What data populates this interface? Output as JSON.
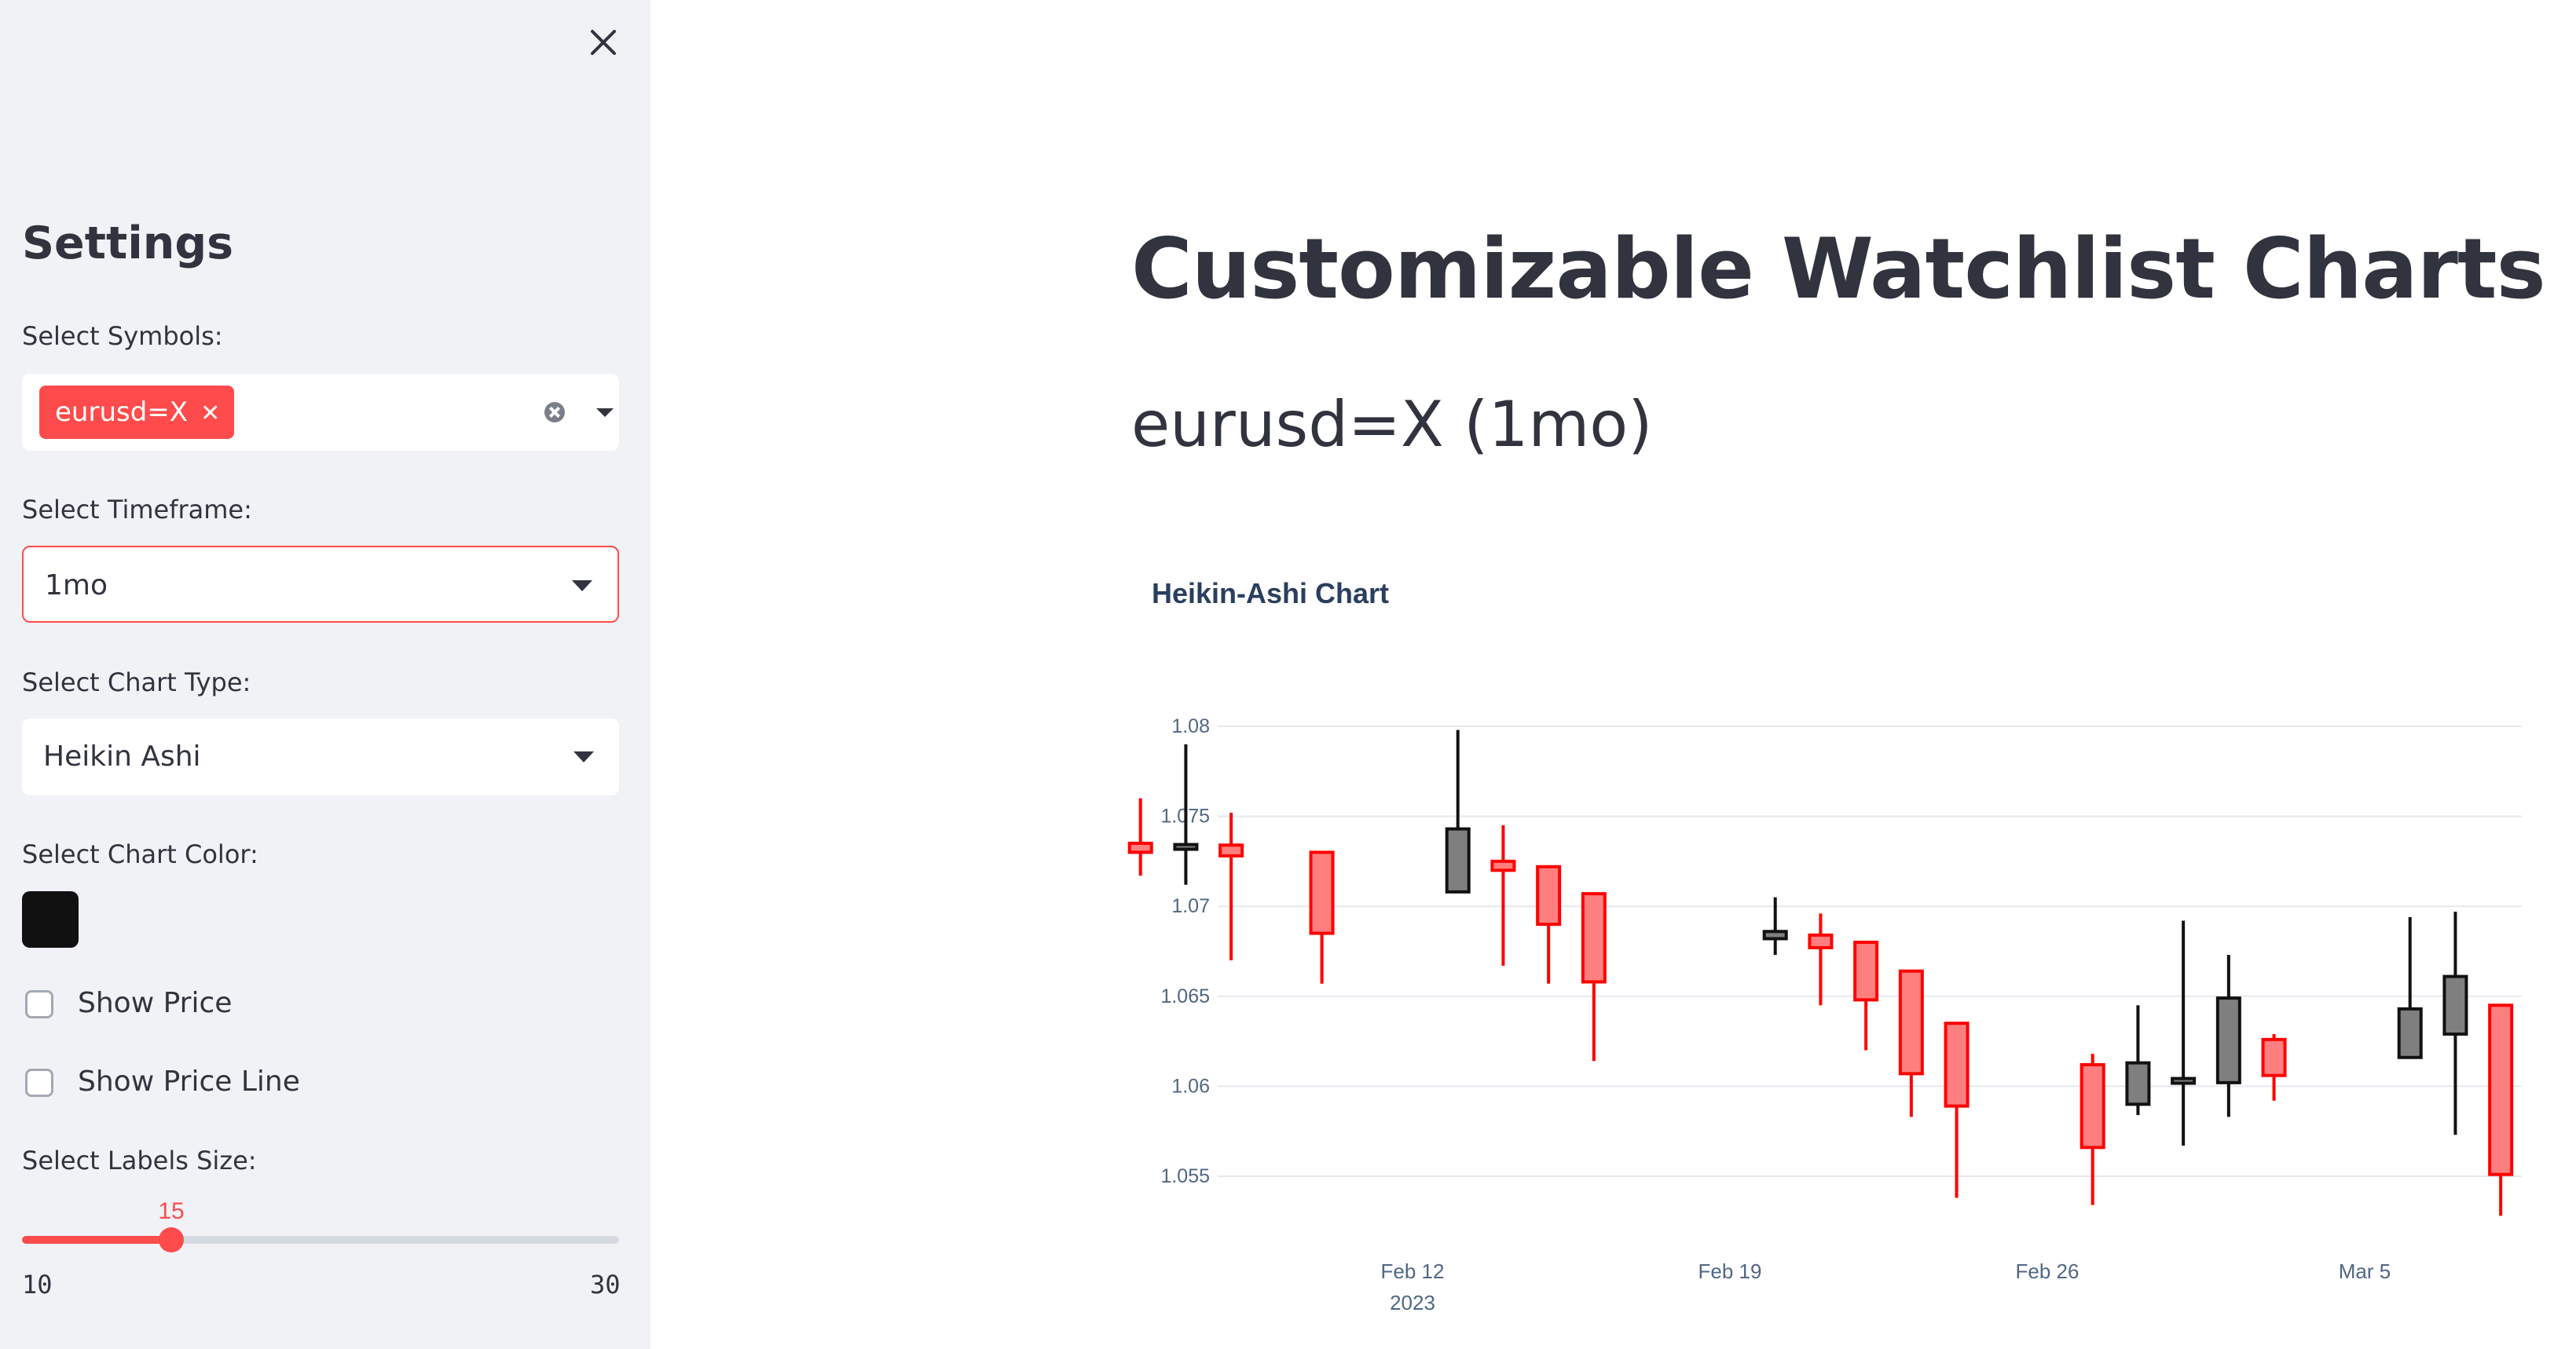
{
  "sidebar": {
    "title": "Settings",
    "symbols": {
      "label": "Select Symbols:",
      "selected": [
        "eurusd=X"
      ]
    },
    "timeframe": {
      "label": "Select Timeframe:",
      "value": "1mo"
    },
    "chart_type": {
      "label": "Select Chart Type:",
      "value": "Heikin Ashi"
    },
    "chart_color": {
      "label": "Select Chart Color:",
      "value": "#111111"
    },
    "show_price": {
      "label": "Show Price",
      "checked": false
    },
    "show_price_line": {
      "label": "Show Price Line",
      "checked": false
    },
    "labels_size": {
      "label": "Select Labels Size:",
      "value": 15,
      "min": 10,
      "max": 30,
      "min_label": "10",
      "max_label": "30",
      "value_label": "15"
    }
  },
  "main": {
    "title": "Customizable Watchlist Charts",
    "chart_heading": "eurusd=X (1mo)"
  },
  "colors": {
    "accent": "#ff4b4b",
    "up": "#111111",
    "down": "#ff0000"
  },
  "chart_data": {
    "type": "candlestick",
    "title": "Heikin-Ashi Chart",
    "xlabel": "",
    "ylabel": "",
    "ylim": [
      1.0525,
      1.0825
    ],
    "yticks": [
      "1.055",
      "1.06",
      "1.065",
      "1.07",
      "1.075",
      "1.08"
    ],
    "xticks": [
      {
        "label": "Feb 12",
        "sublabel": "2023",
        "date": "2023-02-12"
      },
      {
        "label": "Feb 19",
        "sublabel": "",
        "date": "2023-02-19"
      },
      {
        "label": "Feb 26",
        "sublabel": "",
        "date": "2023-02-26"
      },
      {
        "label": "Mar 5",
        "sublabel": "",
        "date": "2023-03-05"
      }
    ],
    "grid": true,
    "legend": "none",
    "candles": [
      {
        "date": "2023-02-06",
        "open": 1.0735,
        "close": 1.073,
        "high": 1.076,
        "low": 1.0717
      },
      {
        "date": "2023-02-07",
        "open": 1.0732,
        "close": 1.0733,
        "high": 1.079,
        "low": 1.0712
      },
      {
        "date": "2023-02-08",
        "open": 1.0734,
        "close": 1.0728,
        "high": 1.0752,
        "low": 1.067
      },
      {
        "date": "2023-02-10",
        "open": 1.073,
        "close": 1.0685,
        "high": 1.073,
        "low": 1.0657
      },
      {
        "date": "2023-02-13",
        "open": 1.0708,
        "close": 1.0743,
        "high": 1.0798,
        "low": 1.0708
      },
      {
        "date": "2023-02-14",
        "open": 1.0725,
        "close": 1.072,
        "high": 1.0745,
        "low": 1.0667
      },
      {
        "date": "2023-02-15",
        "open": 1.0722,
        "close": 1.069,
        "high": 1.0722,
        "low": 1.0657
      },
      {
        "date": "2023-02-16",
        "open": 1.0707,
        "close": 1.0658,
        "high": 1.0707,
        "low": 1.0614
      },
      {
        "date": "2023-02-20",
        "open": 1.0682,
        "close": 1.0686,
        "high": 1.0705,
        "low": 1.0673
      },
      {
        "date": "2023-02-21",
        "open": 1.0684,
        "close": 1.0677,
        "high": 1.0696,
        "low": 1.0645
      },
      {
        "date": "2023-02-22",
        "open": 1.068,
        "close": 1.0648,
        "high": 1.068,
        "low": 1.062
      },
      {
        "date": "2023-02-23",
        "open": 1.0664,
        "close": 1.0607,
        "high": 1.0664,
        "low": 1.0583
      },
      {
        "date": "2023-02-24",
        "open": 1.0635,
        "close": 1.0589,
        "high": 1.0635,
        "low": 1.0538
      },
      {
        "date": "2023-02-27",
        "open": 1.0612,
        "close": 1.0566,
        "high": 1.0618,
        "low": 1.0534
      },
      {
        "date": "2023-02-28",
        "open": 1.059,
        "close": 1.0613,
        "high": 1.0645,
        "low": 1.0584
      },
      {
        "date": "2023-03-01",
        "open": 1.0602,
        "close": 1.0603,
        "high": 1.0692,
        "low": 1.0567
      },
      {
        "date": "2023-03-02",
        "open": 1.0602,
        "close": 1.0649,
        "high": 1.0673,
        "low": 1.0583
      },
      {
        "date": "2023-03-03",
        "open": 1.0626,
        "close": 1.0606,
        "high": 1.0629,
        "low": 1.0592
      },
      {
        "date": "2023-03-06",
        "open": 1.0616,
        "close": 1.0643,
        "high": 1.0694,
        "low": 1.0616
      },
      {
        "date": "2023-03-07",
        "open": 1.0629,
        "close": 1.0661,
        "high": 1.0697,
        "low": 1.0573
      },
      {
        "date": "2023-03-08",
        "open": 1.0645,
        "close": 1.0551,
        "high": 1.0645,
        "low": 1.0528
      }
    ]
  }
}
